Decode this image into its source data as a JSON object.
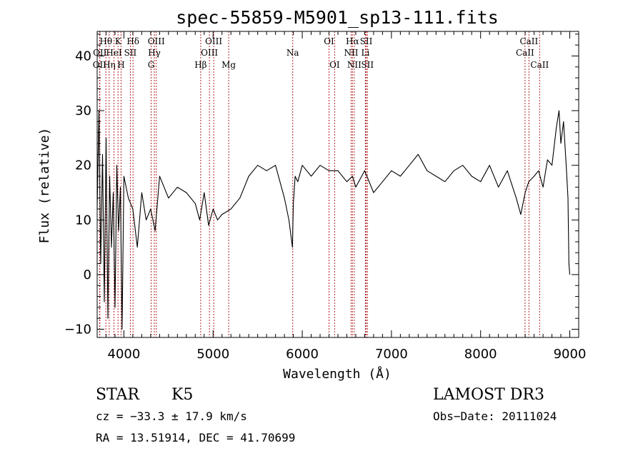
{
  "chart_data": {
    "type": "line",
    "title": "spec-55859-M5901_sp13-111.fits",
    "xlabel": "Wavelength (Å)",
    "ylabel": "Flux (relative)",
    "xlim": [
      3700,
      9100
    ],
    "ylim": [
      -11.5,
      44.5
    ],
    "xticks": [
      4000,
      5000,
      6000,
      7000,
      8000,
      9000
    ],
    "yticks": [
      -10,
      0,
      10,
      20,
      30,
      40
    ],
    "line_color": "#b22222",
    "series": [
      {
        "name": "spectrum",
        "x": [
          3700,
          3720,
          3740,
          3760,
          3780,
          3800,
          3820,
          3840,
          3860,
          3880,
          3900,
          3920,
          3940,
          3960,
          3980,
          4000,
          4050,
          4100,
          4150,
          4200,
          4250,
          4300,
          4350,
          4400,
          4500,
          4600,
          4700,
          4800,
          4850,
          4900,
          4950,
          5000,
          5050,
          5100,
          5200,
          5300,
          5400,
          5500,
          5600,
          5700,
          5800,
          5850,
          5890,
          5900,
          5920,
          5950,
          6000,
          6100,
          6200,
          6300,
          6400,
          6500,
          6563,
          6600,
          6700,
          6800,
          6900,
          7000,
          7100,
          7200,
          7300,
          7400,
          7500,
          7600,
          7700,
          7800,
          7900,
          8000,
          8100,
          8200,
          8300,
          8400,
          8450,
          8500,
          8540,
          8600,
          8650,
          8700,
          8750,
          8800,
          8850,
          8880,
          8900,
          8930,
          8960,
          8980,
          8990,
          9000
        ],
        "y": [
          12,
          30,
          2,
          22,
          -5,
          25,
          -8,
          18,
          5,
          15,
          -6,
          20,
          8,
          16,
          -10,
          18,
          14,
          12,
          5,
          15,
          10,
          12,
          8,
          18,
          14,
          16,
          15,
          13,
          10,
          15,
          9,
          12,
          10,
          11,
          12,
          14,
          18,
          20,
          19,
          20,
          14,
          10,
          5,
          13,
          18,
          17,
          20,
          18,
          20,
          19,
          19,
          17,
          18,
          16,
          19,
          15,
          17,
          19,
          18,
          20,
          22,
          19,
          18,
          17,
          19,
          20,
          18,
          17,
          20,
          16,
          19,
          14,
          11,
          15,
          17,
          18,
          19,
          16,
          21,
          20,
          27,
          30,
          24,
          28,
          20,
          14,
          2,
          0
        ]
      }
    ],
    "lines": [
      {
        "name": "Hθ",
        "wl": 3798,
        "row": 1
      },
      {
        "name": "OII",
        "wl": 3727,
        "row": 3
      },
      {
        "name": "OII",
        "wl": 3730,
        "row": 2
      },
      {
        "name": "Hη",
        "wl": 3835,
        "row": 3
      },
      {
        "name": "HeI",
        "wl": 3889,
        "row": 2
      },
      {
        "name": "K",
        "wl": 3934,
        "row": 1
      },
      {
        "name": "H",
        "wl": 3968,
        "row": 3
      },
      {
        "name": "SII",
        "wl": 4072,
        "row": 2
      },
      {
        "name": "Hδ",
        "wl": 4102,
        "row": 1
      },
      {
        "name": "OIII",
        "wl": 4363,
        "row": 1
      },
      {
        "name": "Hγ",
        "wl": 4341,
        "row": 2
      },
      {
        "name": "G",
        "wl": 4305,
        "row": 3
      },
      {
        "name": "Hβ",
        "wl": 4861,
        "row": 3
      },
      {
        "name": "OIII",
        "wl": 5007,
        "row": 1
      },
      {
        "name": "OIII",
        "wl": 4959,
        "row": 2
      },
      {
        "name": "Mg",
        "wl": 5175,
        "row": 3
      },
      {
        "name": "Na",
        "wl": 5893,
        "row": 2
      },
      {
        "name": "OI",
        "wl": 6300,
        "row": 1
      },
      {
        "name": "OI",
        "wl": 6363,
        "row": 3
      },
      {
        "name": "Hα",
        "wl": 6563,
        "row": 1
      },
      {
        "name": "NII",
        "wl": 6548,
        "row": 2
      },
      {
        "name": "NII",
        "wl": 6583,
        "row": 3
      },
      {
        "name": "SII",
        "wl": 6717,
        "row": 1
      },
      {
        "name": "Li",
        "wl": 6708,
        "row": 2
      },
      {
        "name": "SII",
        "wl": 6731,
        "row": 3
      },
      {
        "name": "CaII",
        "wl": 8542,
        "row": 1
      },
      {
        "name": "CaII",
        "wl": 8498,
        "row": 2
      },
      {
        "name": "CaII",
        "wl": 8662,
        "row": 3
      }
    ]
  },
  "info": {
    "class_label": "STAR",
    "subclass": "K5",
    "survey": "LAMOST DR3",
    "cz": "cz = −33.3 ± 17.9 km/s",
    "obs_date": "Obs−Date: 20111024",
    "coords": "RA =  13.51914, DEC =  41.70699"
  }
}
